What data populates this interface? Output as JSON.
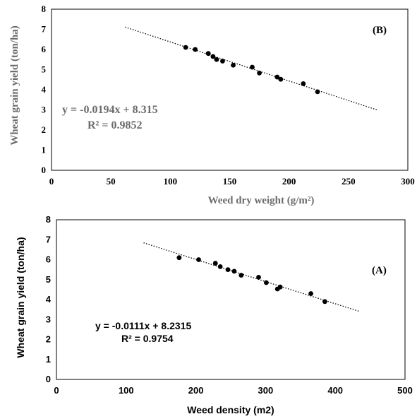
{
  "chart_data": [
    {
      "id": "B",
      "type": "scatter",
      "panel_label": "(B)",
      "xlabel": "Weed dry weight (g/m²)",
      "ylabel": "Wheat grain yield (ton/ha)",
      "xlim": [
        0,
        300
      ],
      "ylim": [
        0,
        8
      ],
      "xticks": [
        0,
        50,
        100,
        150,
        200,
        250,
        300
      ],
      "yticks": [
        0,
        1,
        2,
        3,
        4,
        5,
        6,
        7,
        8
      ],
      "grid": false,
      "equation": "y = -0.0194x + 8.315",
      "r2": "R² = 0.9852",
      "trendline": {
        "slope": -0.0194,
        "intercept": 8.315,
        "x_range": [
          62,
          275
        ]
      },
      "points": [
        {
          "x": 113,
          "y": 6.1
        },
        {
          "x": 121,
          "y": 6.0
        },
        {
          "x": 132,
          "y": 5.8
        },
        {
          "x": 136,
          "y": 5.65
        },
        {
          "x": 139,
          "y": 5.5
        },
        {
          "x": 144,
          "y": 5.42
        },
        {
          "x": 153,
          "y": 5.22
        },
        {
          "x": 169,
          "y": 5.12
        },
        {
          "x": 175,
          "y": 4.83
        },
        {
          "x": 190,
          "y": 4.63
        },
        {
          "x": 193,
          "y": 4.52
        },
        {
          "x": 212,
          "y": 4.3
        },
        {
          "x": 224,
          "y": 3.9
        }
      ]
    },
    {
      "id": "A",
      "type": "scatter",
      "panel_label": "(A)",
      "xlabel": "Weed  density (m2)",
      "ylabel": "Wheat grain yield (ton/ha)",
      "xlim": [
        0,
        500
      ],
      "ylim": [
        0,
        8
      ],
      "xticks": [
        0,
        100,
        200,
        300,
        400,
        500
      ],
      "yticks": [
        0,
        1,
        2,
        3,
        4,
        5,
        6,
        7,
        8
      ],
      "grid": false,
      "equation": "y = -0.0111x + 8.2315",
      "r2": "R² = 0.9754",
      "trendline": {
        "slope": -0.0111,
        "intercept": 8.2315,
        "x_range": [
          125,
          435
        ]
      },
      "points": [
        {
          "x": 176,
          "y": 6.1
        },
        {
          "x": 204,
          "y": 6.0
        },
        {
          "x": 228,
          "y": 5.82
        },
        {
          "x": 235,
          "y": 5.65
        },
        {
          "x": 246,
          "y": 5.5
        },
        {
          "x": 255,
          "y": 5.42
        },
        {
          "x": 265,
          "y": 5.22
        },
        {
          "x": 290,
          "y": 5.12
        },
        {
          "x": 301,
          "y": 4.85
        },
        {
          "x": 317,
          "y": 4.53
        },
        {
          "x": 321,
          "y": 4.63
        },
        {
          "x": 365,
          "y": 4.3
        },
        {
          "x": 385,
          "y": 3.9
        }
      ]
    }
  ]
}
